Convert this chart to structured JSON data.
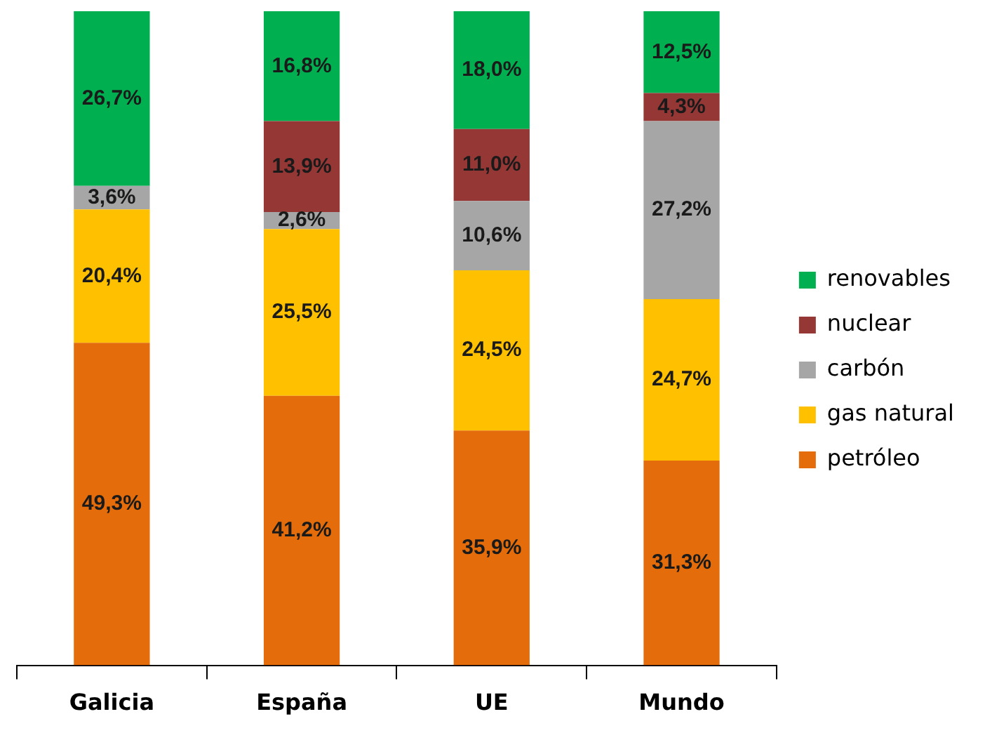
{
  "chart_data": {
    "type": "bar",
    "stacked": true,
    "categories": [
      "Galicia",
      "España",
      "UE",
      "Mundo"
    ],
    "series": [
      {
        "name": "petróleo",
        "color": "#e46c0a",
        "values": [
          49.3,
          41.2,
          35.9,
          31.3
        ],
        "value_labels": [
          "49,3%",
          "41,2%",
          "35,9%",
          "31,3%"
        ]
      },
      {
        "name": "gas natural",
        "color": "#ffc000",
        "values": [
          20.4,
          25.5,
          24.5,
          24.7
        ],
        "value_labels": [
          "20,4%",
          "25,5%",
          "24,5%",
          "24,7%"
        ]
      },
      {
        "name": "carbón",
        "color": "#a6a6a6",
        "values": [
          3.6,
          2.6,
          10.6,
          27.2
        ],
        "value_labels": [
          "3,6%",
          "2,6%",
          "10,6%",
          "27,2%"
        ]
      },
      {
        "name": "nuclear",
        "color": "#953735",
        "values": [
          null,
          13.9,
          11.0,
          4.3
        ],
        "value_labels": [
          null,
          "13,9%",
          "11,0%",
          "4,3%"
        ]
      },
      {
        "name": "renovables",
        "color": "#00b050",
        "values": [
          26.7,
          16.8,
          18.0,
          12.5
        ],
        "value_labels": [
          "26,7%",
          "16,8%",
          "18,0%",
          "12,5%"
        ]
      }
    ],
    "legend": "right",
    "tick_labels": "x"
  }
}
